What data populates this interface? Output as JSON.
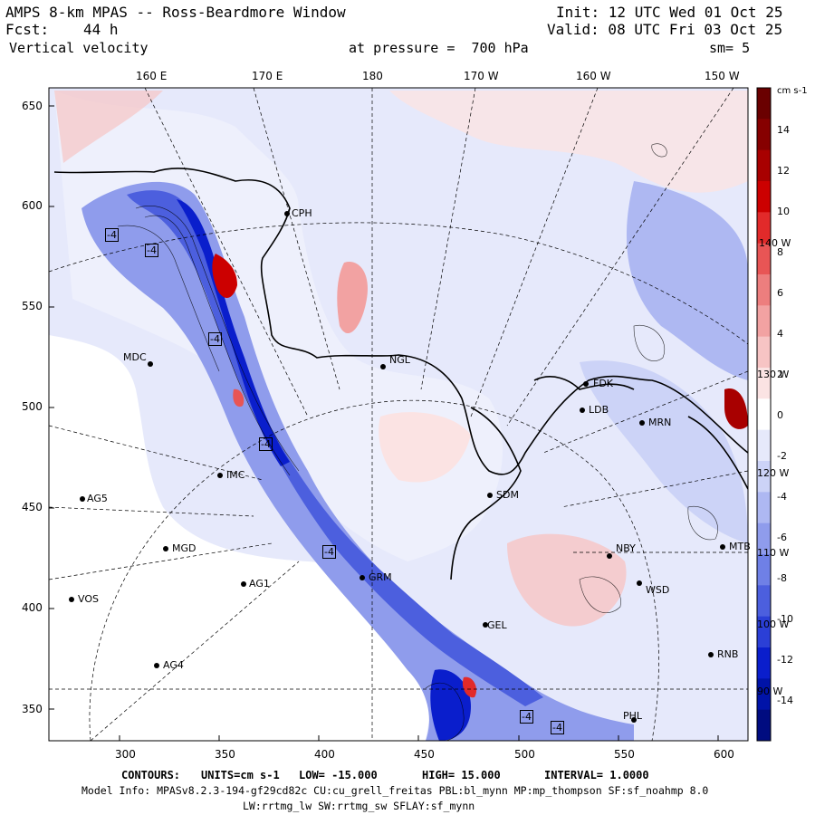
{
  "header": {
    "title": "AMPS 8-km MPAS -- Ross-Beardmore Window",
    "forecast_label": "Fcst:",
    "forecast_value": "44 h",
    "field": "Vertical velocity",
    "init": "Init: 12 UTC Wed 01 Oct 25",
    "valid": "Valid: 08 UTC Fri 03 Oct 25",
    "level": "at pressure =  700 hPa",
    "smoothing": "sm= 5"
  },
  "top_axis": [
    "160 E",
    "170 E",
    "180",
    "170 W",
    "160 W",
    "150 W"
  ],
  "left_axis": [
    "650",
    "600",
    "550",
    "500",
    "450",
    "400",
    "350"
  ],
  "bottom_axis": [
    "300",
    "350",
    "400",
    "450",
    "500",
    "550",
    "600"
  ],
  "right_meridian_labels": [
    "140 W",
    "130 W",
    "120 W",
    "110 W",
    "100 W",
    "90 W"
  ],
  "colorbar": {
    "units": "cm s-1",
    "labels": [
      "14",
      "12",
      "10",
      "8",
      "6",
      "4",
      "2",
      "0",
      "-2",
      "-4",
      "-6",
      "-8",
      "-10",
      "-12",
      "-14"
    ],
    "positive_colors": [
      "#fbe3e3",
      "#f7c4c4",
      "#f2a2a2",
      "#ed7e7e",
      "#e85555",
      "#e22a2a",
      "#cc0000",
      "#a80000",
      "#860000",
      "#6a0000"
    ],
    "negative_colors": [
      "#e6e9fb",
      "#ccd3f7",
      "#aeb8f2",
      "#8f9cec",
      "#6f80e6",
      "#4c5fde",
      "#2b3fd6",
      "#0a1ecc",
      "#0013a8",
      "#000c80"
    ]
  },
  "stations": [
    {
      "name": "CPH"
    },
    {
      "name": "MDC"
    },
    {
      "name": "NGL"
    },
    {
      "name": "FDK"
    },
    {
      "name": "LDB"
    },
    {
      "name": "AG5"
    },
    {
      "name": "IMC"
    },
    {
      "name": "SDM"
    },
    {
      "name": "MGD"
    },
    {
      "name": "NBY"
    },
    {
      "name": "AG1"
    },
    {
      "name": "GRM"
    },
    {
      "name": "WSD"
    },
    {
      "name": "VOS"
    },
    {
      "name": "GEL"
    },
    {
      "name": "AG4"
    },
    {
      "name": "RNB"
    },
    {
      "name": "PHL"
    },
    {
      "name": "MTB"
    },
    {
      "name": "MRN"
    }
  ],
  "contour_labels": [
    "-4",
    "-4",
    "-4",
    "-4",
    "-4",
    "-4",
    "-4"
  ],
  "footer": {
    "contours_label": "CONTOURS:",
    "units": "UNITS=cm s-1",
    "low": "LOW= -15.000",
    "high": "HIGH= 15.000",
    "interval": "INTERVAL= 1.0000",
    "model_info": "Model Info: MPASv8.2.3-194-gf29cd82c CU:cu_grell_freitas PBL:bl_mynn MP:mp_thompson SF:sf_noahmp 8.0",
    "model_info2": "LW:rrtmg_lw SW:rrtmg_sw SFLAY:sf_mynn"
  }
}
